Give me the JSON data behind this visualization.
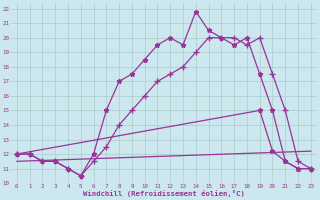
{
  "xlabel": "Windchill (Refroidissement éolien,°C)",
  "bg_color": "#cce8ee",
  "line_color": "#993399",
  "grid_color": "#aacccc",
  "xlim": [
    -0.5,
    23.5
  ],
  "ylim": [
    10,
    22.4
  ],
  "yticks": [
    10,
    11,
    12,
    13,
    14,
    15,
    16,
    17,
    18,
    19,
    20,
    21,
    22
  ],
  "curve1_x": [
    0,
    1,
    2,
    3,
    4,
    5,
    6,
    7,
    8,
    9,
    10,
    11,
    12,
    13,
    14,
    15,
    16,
    17,
    18,
    19,
    20,
    21,
    22,
    23
  ],
  "curve1_y": [
    12,
    12,
    11.5,
    11.5,
    11,
    10.5,
    12,
    15,
    17,
    17.5,
    18.5,
    19.5,
    20,
    19.5,
    21.8,
    20.5,
    20,
    19.5,
    20,
    17.5,
    15,
    11.5,
    11,
    11
  ],
  "curve2_x": [
    0,
    1,
    2,
    3,
    4,
    5,
    6,
    7,
    8,
    9,
    10,
    11,
    12,
    13,
    14,
    15,
    16,
    17,
    18,
    19,
    20,
    21,
    22,
    23
  ],
  "curve2_y": [
    12,
    12,
    11.5,
    11.5,
    11,
    10.5,
    11.5,
    12.5,
    14,
    15,
    16,
    17,
    17.5,
    18,
    19,
    20,
    20,
    20,
    19.5,
    20,
    17.5,
    15,
    11.5,
    11
  ],
  "line3_x": [
    0,
    23
  ],
  "line3_y": [
    11.5,
    12.2
  ],
  "line4_x": [
    0,
    19,
    20,
    21,
    22,
    23
  ],
  "line4_y": [
    12.0,
    15.0,
    12.2,
    11.5,
    11.0,
    11.0
  ]
}
